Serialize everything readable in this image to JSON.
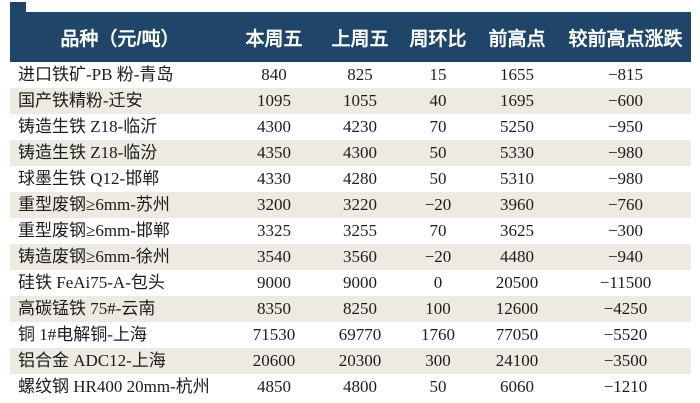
{
  "colors": {
    "header_bg": "#1f4568",
    "header_text": "#ffffff",
    "row_bg": "#ffffff",
    "row_alt_bg": "#eceae1",
    "body_text": "#1c1c1c"
  },
  "table": {
    "columns": [
      "品种（元/吨）",
      "本周五",
      "上周五",
      "周环比",
      "前高点",
      "较前高点涨跌"
    ],
    "rows": [
      [
        "进口铁矿-PB 粉-青岛",
        "840",
        "825",
        "15",
        "1655",
        "−815"
      ],
      [
        "国产铁精粉-迁安",
        "1095",
        "1055",
        "40",
        "1695",
        "−600"
      ],
      [
        "铸造生铁 Z18-临沂",
        "4300",
        "4230",
        "70",
        "5250",
        "−950"
      ],
      [
        "铸造生铁 Z18-临汾",
        "4350",
        "4300",
        "50",
        "5330",
        "−980"
      ],
      [
        "球墨生铁 Q12-邯郸",
        "4330",
        "4280",
        "50",
        "5310",
        "−980"
      ],
      [
        "重型废钢≥6mm-苏州",
        "3200",
        "3220",
        "−20",
        "3960",
        "−760"
      ],
      [
        "重型废钢≥6mm-邯郸",
        "3325",
        "3255",
        "70",
        "3625",
        "−300"
      ],
      [
        "铸造废钢≥6mm-徐州",
        "3540",
        "3560",
        "−20",
        "4480",
        "−940"
      ],
      [
        "硅铁 FeAi75-A-包头",
        "9000",
        "9000",
        "0",
        "20500",
        "−11500"
      ],
      [
        "高碳锰铁 75#-云南",
        "8350",
        "8250",
        "100",
        "12600",
        "−4250"
      ],
      [
        "铜 1#电解铜-上海",
        "71530",
        "69770",
        "1760",
        "77050",
        "−5520"
      ],
      [
        "铝合金 ADC12-上海",
        "20600",
        "20300",
        "300",
        "24100",
        "−3500"
      ],
      [
        "螺纹钢 HR400 20mm-杭州",
        "4850",
        "4800",
        "50",
        "6060",
        "−1210"
      ]
    ]
  }
}
